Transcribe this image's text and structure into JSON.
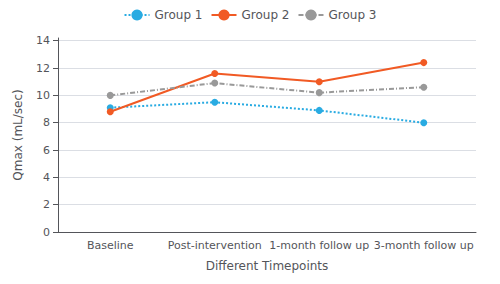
{
  "chart_data": {
    "type": "line",
    "xlabel": "Different Timepoints",
    "ylabel": "Qmax (mL/sec)",
    "categories": [
      "Baseline",
      "Post-intervention",
      "1-month follow up",
      "3-month follow up"
    ],
    "series": [
      {
        "name": "Group 1",
        "color": "#29ABE2",
        "line_style": "dotted",
        "marker": "circle",
        "values": [
          9.1,
          9.5,
          8.9,
          8.0
        ]
      },
      {
        "name": "Group 2",
        "color": "#F15A24",
        "line_style": "solid",
        "marker": "circle",
        "values": [
          8.8,
          11.6,
          11.0,
          12.4
        ]
      },
      {
        "name": "Group 3",
        "color": "#999999",
        "line_style": "dashdot",
        "marker": "circle",
        "values": [
          10.0,
          10.9,
          10.2,
          10.6
        ]
      }
    ],
    "ylim": [
      0,
      14.2
    ],
    "yticks": [
      0,
      2,
      4,
      6,
      8,
      10,
      12,
      14
    ],
    "grid": true,
    "legend": "top"
  }
}
